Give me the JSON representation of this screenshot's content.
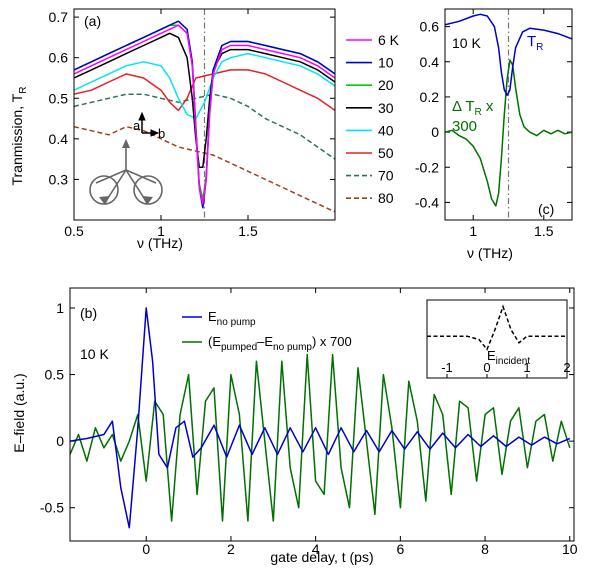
{
  "chart_data": [
    {
      "panel": "(a)",
      "type": "line",
      "xlabel": "ν (THz)",
      "ylabel": "Tranmission, T",
      "ylabel_sub": "R",
      "xlim": [
        0.5,
        2.0
      ],
      "ylim": [
        0.2,
        0.72
      ],
      "xticks": [
        0.5,
        1,
        1.5
      ],
      "xtick_labels": [
        "0.5",
        "1",
        "1.5"
      ],
      "yticks": [
        0.3,
        0.4,
        0.5,
        0.6,
        0.7
      ],
      "ytick_labels": [
        "0.3",
        "0.4",
        "0.5",
        "0.6",
        "0.7"
      ],
      "vline_x": 1.25,
      "axis_labels": {
        "a": "a",
        "b": "b"
      },
      "legend_placement": "right-outside",
      "series": [
        {
          "name": "6 K",
          "color": "#ff00ff",
          "dash": false,
          "x": [
            0.5,
            0.6,
            0.7,
            0.8,
            0.9,
            1.0,
            1.05,
            1.1,
            1.15,
            1.18,
            1.2,
            1.22,
            1.24,
            1.26,
            1.28,
            1.3,
            1.35,
            1.4,
            1.5,
            1.6,
            1.7,
            1.8,
            1.9,
            2.0
          ],
          "y": [
            0.56,
            0.58,
            0.6,
            0.62,
            0.64,
            0.66,
            0.67,
            0.68,
            0.66,
            0.58,
            0.42,
            0.28,
            0.24,
            0.3,
            0.46,
            0.56,
            0.62,
            0.63,
            0.63,
            0.62,
            0.61,
            0.6,
            0.58,
            0.55
          ]
        },
        {
          "name": "10",
          "color": "#0000cc",
          "dash": false,
          "x": [
            0.5,
            0.6,
            0.7,
            0.8,
            0.9,
            1.0,
            1.05,
            1.1,
            1.15,
            1.18,
            1.2,
            1.22,
            1.24,
            1.26,
            1.28,
            1.3,
            1.35,
            1.4,
            1.5,
            1.6,
            1.7,
            1.8,
            1.9,
            2.0
          ],
          "y": [
            0.57,
            0.59,
            0.61,
            0.63,
            0.65,
            0.67,
            0.68,
            0.69,
            0.67,
            0.59,
            0.43,
            0.28,
            0.23,
            0.3,
            0.47,
            0.57,
            0.63,
            0.64,
            0.64,
            0.63,
            0.62,
            0.61,
            0.59,
            0.56
          ]
        },
        {
          "name": "20",
          "color": "#00cc00",
          "dash": false,
          "x": [
            0.5,
            0.6,
            0.7,
            0.8,
            0.9,
            1.0,
            1.05,
            1.1,
            1.15,
            1.18,
            1.2,
            1.22,
            1.24,
            1.26,
            1.28,
            1.3,
            1.35,
            1.4,
            1.5,
            1.6,
            1.7,
            1.8,
            1.9,
            2.0
          ],
          "y": [
            0.57,
            0.59,
            0.61,
            0.63,
            0.65,
            0.67,
            0.68,
            0.68,
            0.66,
            0.58,
            0.43,
            0.29,
            0.25,
            0.31,
            0.47,
            0.57,
            0.63,
            0.64,
            0.64,
            0.63,
            0.62,
            0.61,
            0.59,
            0.56
          ]
        },
        {
          "name": "30",
          "color": "#000000",
          "dash": false,
          "x": [
            0.5,
            0.6,
            0.7,
            0.8,
            0.9,
            1.0,
            1.05,
            1.1,
            1.15,
            1.18,
            1.2,
            1.22,
            1.24,
            1.26,
            1.28,
            1.3,
            1.35,
            1.4,
            1.5,
            1.6,
            1.7,
            1.8,
            1.9,
            2.0
          ],
          "y": [
            0.55,
            0.57,
            0.59,
            0.61,
            0.63,
            0.65,
            0.66,
            0.65,
            0.6,
            0.5,
            0.4,
            0.33,
            0.33,
            0.4,
            0.5,
            0.57,
            0.61,
            0.62,
            0.62,
            0.61,
            0.6,
            0.59,
            0.57,
            0.54
          ]
        },
        {
          "name": "40",
          "color": "#00e5ee",
          "dash": false,
          "x": [
            0.5,
            0.6,
            0.7,
            0.8,
            0.9,
            1.0,
            1.05,
            1.1,
            1.15,
            1.2,
            1.25,
            1.3,
            1.35,
            1.4,
            1.5,
            1.6,
            1.7,
            1.8,
            1.9,
            2.0
          ],
          "y": [
            0.52,
            0.54,
            0.56,
            0.58,
            0.59,
            0.58,
            0.55,
            0.5,
            0.46,
            0.45,
            0.49,
            0.55,
            0.59,
            0.6,
            0.61,
            0.6,
            0.59,
            0.58,
            0.56,
            0.53
          ]
        },
        {
          "name": "50",
          "color": "#e82020",
          "dash": false,
          "x": [
            0.5,
            0.6,
            0.7,
            0.8,
            0.9,
            1.0,
            1.05,
            1.1,
            1.15,
            1.2,
            1.3,
            1.4,
            1.5,
            1.6,
            1.7,
            1.8,
            1.9,
            2.0
          ],
          "y": [
            0.51,
            0.52,
            0.54,
            0.56,
            0.55,
            0.52,
            0.49,
            0.47,
            0.5,
            0.55,
            0.56,
            0.57,
            0.57,
            0.56,
            0.54,
            0.52,
            0.5,
            0.47
          ]
        },
        {
          "name": "70",
          "color": "#2f6f5f",
          "dash": true,
          "x": [
            0.5,
            0.6,
            0.7,
            0.8,
            0.9,
            1.0,
            1.1,
            1.2,
            1.3,
            1.4,
            1.5,
            1.6,
            1.7,
            1.8,
            1.9,
            2.0
          ],
          "y": [
            0.48,
            0.49,
            0.5,
            0.51,
            0.51,
            0.5,
            0.49,
            0.5,
            0.51,
            0.5,
            0.48,
            0.45,
            0.43,
            0.41,
            0.38,
            0.35
          ]
        },
        {
          "name": "80",
          "color": "#a0401a",
          "dash": true,
          "x": [
            0.5,
            0.6,
            0.7,
            0.8,
            0.9,
            1.0,
            1.1,
            1.2,
            1.3,
            1.4,
            1.5,
            1.6,
            1.7,
            1.8,
            1.9,
            2.0
          ],
          "y": [
            0.43,
            0.42,
            0.41,
            0.43,
            0.42,
            0.4,
            0.38,
            0.37,
            0.36,
            0.34,
            0.32,
            0.3,
            0.28,
            0.26,
            0.24,
            0.22
          ]
        }
      ]
    },
    {
      "panel": "(c)",
      "type": "line",
      "xlabel": "ν (THz)",
      "xlim": [
        0.8,
        1.7
      ],
      "ylim": [
        -0.5,
        0.7
      ],
      "xticks": [
        1,
        1.5
      ],
      "xtick_labels": [
        "1",
        "1.5"
      ],
      "yticks": [
        -0.4,
        -0.2,
        0,
        0.2,
        0.4,
        0.6
      ],
      "ytick_labels": [
        "-0.4",
        "-0.2",
        "0",
        "0.2",
        "0.4",
        "0.6"
      ],
      "vline_x": 1.25,
      "temperature_label": "10 K",
      "series": [
        {
          "name": "T",
          "name_sub": "R",
          "color": "#0000cc",
          "dash": false,
          "x": [
            0.8,
            0.9,
            1.0,
            1.05,
            1.1,
            1.15,
            1.18,
            1.2,
            1.22,
            1.24,
            1.26,
            1.28,
            1.3,
            1.35,
            1.4,
            1.5,
            1.6,
            1.7
          ],
          "y": [
            0.61,
            0.63,
            0.66,
            0.67,
            0.66,
            0.6,
            0.48,
            0.34,
            0.24,
            0.21,
            0.24,
            0.37,
            0.48,
            0.57,
            0.59,
            0.58,
            0.56,
            0.53
          ]
        },
        {
          "name": "Δ T",
          "name_sub": "R",
          "name_suffix": " x",
          "name_line2": "300",
          "color": "#007000",
          "dash": false,
          "x": [
            0.8,
            0.85,
            0.9,
            0.95,
            1.0,
            1.05,
            1.1,
            1.13,
            1.16,
            1.18,
            1.2,
            1.22,
            1.24,
            1.26,
            1.28,
            1.3,
            1.33,
            1.36,
            1.4,
            1.45,
            1.5,
            1.55,
            1.6,
            1.65,
            1.7
          ],
          "y": [
            0.0,
            0.01,
            -0.02,
            -0.04,
            -0.08,
            -0.15,
            -0.28,
            -0.38,
            -0.42,
            -0.35,
            -0.15,
            0.1,
            0.3,
            0.41,
            0.38,
            0.25,
            0.1,
            0.03,
            0.0,
            -0.02,
            0.01,
            -0.01,
            0.01,
            -0.01,
            0.0
          ]
        }
      ]
    },
    {
      "panel": "(b)",
      "type": "line",
      "xlabel": "gate delay, t (ps)",
      "ylabel": "E–field (a.u.)",
      "xlim": [
        -1.8,
        10.1
      ],
      "ylim": [
        -0.75,
        1.15
      ],
      "xticks": [
        0,
        2,
        4,
        6,
        8,
        10
      ],
      "xtick_labels": [
        "0",
        "2",
        "4",
        "6",
        "8",
        "10"
      ],
      "yticks": [
        -0.5,
        0,
        0.5,
        1
      ],
      "ytick_labels": [
        "-0.5",
        "0",
        "0.5",
        "1"
      ],
      "temperature_label": "10 K",
      "series": [
        {
          "name": "E",
          "name_sub": "no pump",
          "color": "#0000cc",
          "dash": false,
          "x": [
            -1.8,
            -1.4,
            -1.0,
            -0.8,
            -0.6,
            -0.4,
            -0.2,
            0.0,
            0.15,
            0.3,
            0.5,
            0.7,
            0.9,
            1.1,
            1.3,
            1.6,
            1.9,
            2.2,
            2.5,
            2.8,
            3.1,
            3.4,
            3.7,
            4.0,
            4.3,
            4.6,
            4.9,
            5.2,
            5.5,
            5.8,
            6.1,
            6.4,
            6.7,
            7.0,
            7.3,
            7.6,
            7.9,
            8.2,
            8.5,
            8.8,
            9.1,
            9.4,
            9.7,
            10.0
          ],
          "y": [
            0.0,
            0.02,
            0.05,
            0.15,
            -0.35,
            -0.65,
            0.1,
            1.0,
            0.6,
            -0.1,
            -0.2,
            0.1,
            0.15,
            -0.12,
            -0.05,
            0.12,
            -0.12,
            0.12,
            -0.1,
            0.1,
            -0.1,
            0.1,
            -0.08,
            0.1,
            -0.1,
            0.1,
            -0.08,
            0.08,
            -0.08,
            0.08,
            -0.06,
            0.07,
            -0.06,
            0.06,
            -0.05,
            0.05,
            -0.04,
            0.04,
            -0.04,
            0.03,
            -0.03,
            0.03,
            -0.02,
            0.02
          ]
        },
        {
          "name": "(E",
          "name_sub": "pumped",
          "name_mid": "–E",
          "name_sub2": "no pump",
          "name_suffix": ") x 700",
          "color": "#007000",
          "dash": false,
          "x": [
            -1.8,
            -1.6,
            -1.4,
            -1.2,
            -1.0,
            -0.8,
            -0.6,
            -0.4,
            -0.2,
            0.0,
            0.2,
            0.4,
            0.6,
            0.8,
            1.0,
            1.2,
            1.4,
            1.6,
            1.8,
            2.0,
            2.2,
            2.4,
            2.6,
            2.8,
            3.0,
            3.2,
            3.4,
            3.6,
            3.8,
            4.0,
            4.2,
            4.4,
            4.6,
            4.8,
            5.0,
            5.2,
            5.4,
            5.6,
            5.8,
            6.0,
            6.2,
            6.4,
            6.6,
            6.8,
            7.0,
            7.2,
            7.4,
            7.6,
            7.8,
            8.0,
            8.2,
            8.4,
            8.6,
            8.8,
            9.0,
            9.2,
            9.4,
            9.6,
            9.8,
            10.0
          ],
          "y": [
            -0.1,
            0.05,
            -0.15,
            0.1,
            -0.05,
            0.05,
            -0.15,
            0.0,
            0.2,
            -0.3,
            0.3,
            0.2,
            -0.6,
            0.2,
            0.5,
            -0.4,
            0.3,
            0.4,
            -0.6,
            0.5,
            0.2,
            -0.6,
            0.6,
            0.0,
            -0.6,
            0.6,
            -0.2,
            -0.5,
            0.65,
            -0.3,
            -0.4,
            0.65,
            -0.2,
            -0.5,
            0.55,
            0.0,
            -0.55,
            0.5,
            0.1,
            -0.5,
            0.45,
            0.15,
            -0.45,
            0.35,
            0.2,
            -0.4,
            0.3,
            0.25,
            -0.3,
            0.2,
            0.25,
            -0.25,
            0.15,
            0.25,
            -0.2,
            0.15,
            0.2,
            -0.15,
            0.15,
            -0.05
          ]
        }
      ]
    },
    {
      "panel": "inset",
      "type": "line",
      "xlim": [
        -1.5,
        2.0
      ],
      "ylim": [
        -0.6,
        1.1
      ],
      "xticks": [
        -1,
        0,
        1,
        2
      ],
      "xtick_labels": [
        "-1",
        "0",
        "1",
        "2"
      ],
      "series": [
        {
          "name": "E",
          "name_sub": "incident",
          "color": "#000000",
          "dash": true,
          "x": [
            -1.5,
            -1.0,
            -0.5,
            -0.2,
            0.0,
            0.2,
            0.4,
            0.6,
            0.8,
            1.0,
            1.5,
            2.0
          ],
          "y": [
            0.0,
            0.0,
            0.0,
            -0.1,
            -0.4,
            0.2,
            0.9,
            0.2,
            -0.2,
            0.0,
            0.0,
            0.0
          ]
        }
      ]
    }
  ]
}
